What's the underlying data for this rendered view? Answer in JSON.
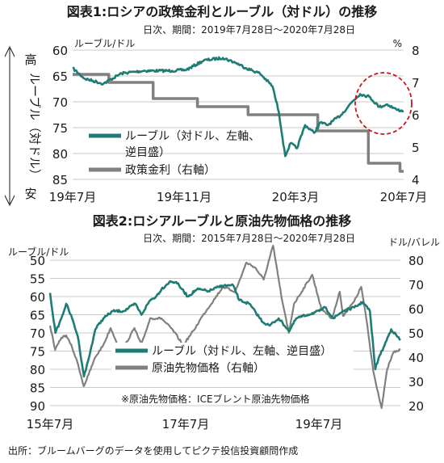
{
  "colors": {
    "ruble": "#1e7c74",
    "policy": "#808080",
    "oil": "#808080",
    "grid": "#c8c8c8",
    "circle": "#c8181e"
  },
  "figure1": {
    "title": "図表1:ロシアの政策金利とルーブル（対ドル）の推移",
    "subtitle": "日次、期間：2019年7月28日〜2020年7月28日",
    "left_unit": "ルーブル/ドル",
    "right_unit": "%",
    "side_top": "高",
    "side_mid": "ルーブル（対ドル）",
    "side_bottom": "安",
    "legend_ruble_1": "ルーブル（対ドル、左軸、",
    "legend_ruble_2": "逆目盛）",
    "legend_policy": "政策金利（右軸）",
    "x_ticks": [
      "19年7月",
      "19年11月",
      "20年3月",
      "20年7月"
    ],
    "y_left_ticks": [
      "60",
      "65",
      "70",
      "75",
      "80",
      "85"
    ],
    "y_right_ticks": [
      "8",
      "7",
      "6",
      "5",
      "4"
    ]
  },
  "figure2": {
    "title": "図表2:ロシアルーブルと原油先物価格の推移",
    "subtitle": "日次、期間：2015年7月28日〜2020年7月28日",
    "left_unit": "ルーブル/ドル",
    "right_unit": "ドル/バレル",
    "legend_ruble": "ルーブル（対ドル、左軸、逆目盛）",
    "legend_oil": "原油先物価格（右軸）",
    "note": "※原油先物価格：ICEブレント原油先物価格",
    "x_ticks": [
      "15年7月",
      "17年7月",
      "19年7月"
    ],
    "y_left_ticks": [
      "50",
      "55",
      "60",
      "65",
      "70",
      "75",
      "80",
      "85",
      "90"
    ],
    "y_right_ticks": [
      "80",
      "70",
      "60",
      "50",
      "40",
      "30",
      "20"
    ]
  },
  "source": "出所：ブルームバーグのデータを使用してピクテ投信投資顧問作成",
  "chart_data": [
    {
      "type": "line",
      "title": "図表1:ロシアの政策金利とルーブル（対ドル）の推移",
      "xlabel": "",
      "ylabel": "ルーブル/ドル",
      "y_inverted": true,
      "ylim": [
        60,
        85
      ],
      "y2lim": [
        4,
        8
      ],
      "x_range": [
        "2019-07-28",
        "2020-07-28"
      ],
      "grid": "horizontal",
      "legend_position": "bottom-left",
      "series": [
        {
          "name": "ルーブル（対ドル、左軸、逆目盛）",
          "axis": "left",
          "points": [
            [
              "2019-07-28",
              63.5
            ],
            [
              "2019-08-10",
              65.5
            ],
            [
              "2019-08-31",
              66.5
            ],
            [
              "2019-09-20",
              64.5
            ],
            [
              "2019-10-15",
              64.0
            ],
            [
              "2019-10-31",
              64.0
            ],
            [
              "2019-11-15",
              64.0
            ],
            [
              "2019-12-01",
              63.8
            ],
            [
              "2019-12-20",
              62.0
            ],
            [
              "2020-01-10",
              61.5
            ],
            [
              "2020-01-25",
              62.5
            ],
            [
              "2020-02-05",
              63.5
            ],
            [
              "2020-02-20",
              64.5
            ],
            [
              "2020-03-05",
              67.0
            ],
            [
              "2020-03-12",
              72.0
            ],
            [
              "2020-03-19",
              80.5
            ],
            [
              "2020-03-25",
              78.0
            ],
            [
              "2020-04-01",
              79.0
            ],
            [
              "2020-04-10",
              74.5
            ],
            [
              "2020-04-20",
              76.0
            ],
            [
              "2020-04-27",
              74.0
            ],
            [
              "2020-05-05",
              74.5
            ],
            [
              "2020-05-20",
              72.5
            ],
            [
              "2020-06-01",
              70.0
            ],
            [
              "2020-06-10",
              68.5
            ],
            [
              "2020-06-20",
              69.0
            ],
            [
              "2020-07-01",
              71.0
            ],
            [
              "2020-07-10",
              70.5
            ],
            [
              "2020-07-20",
              71.5
            ],
            [
              "2020-07-28",
              71.8
            ]
          ]
        },
        {
          "name": "政策金利（右軸）",
          "axis": "right",
          "points": [
            [
              "2019-07-28",
              7.25
            ],
            [
              "2019-09-06",
              7.0
            ],
            [
              "2019-10-25",
              6.5
            ],
            [
              "2019-12-13",
              6.25
            ],
            [
              "2020-02-07",
              6.0
            ],
            [
              "2020-04-24",
              5.5
            ],
            [
              "2020-06-19",
              4.5
            ],
            [
              "2020-07-24",
              4.25
            ],
            [
              "2020-07-28",
              4.25
            ]
          ]
        }
      ]
    },
    {
      "type": "line",
      "title": "図表2:ロシアルーブルと原油先物価格の推移",
      "xlabel": "",
      "ylabel": "ルーブル/ドル",
      "y_inverted": true,
      "ylim": [
        50,
        90
      ],
      "y2lim": [
        20,
        80
      ],
      "x_range": [
        "2015-07-28",
        "2020-07-28"
      ],
      "grid": "horizontal",
      "legend_position": "bottom-center",
      "series": [
        {
          "name": "ルーブル（対ドル、左軸、逆目盛）",
          "axis": "left",
          "points": [
            [
              "2015-07-28",
              59
            ],
            [
              "2015-08-25",
              70
            ],
            [
              "2015-09-25",
              66
            ],
            [
              "2015-10-20",
              62
            ],
            [
              "2015-11-20",
              66
            ],
            [
              "2015-12-20",
              71
            ],
            [
              "2016-01-21",
              82
            ],
            [
              "2016-02-15",
              77
            ],
            [
              "2016-03-20",
              69
            ],
            [
              "2016-05-01",
              66
            ],
            [
              "2016-06-20",
              64
            ],
            [
              "2016-08-15",
              64
            ],
            [
              "2016-10-15",
              62
            ],
            [
              "2016-11-15",
              65
            ],
            [
              "2016-12-31",
              61
            ],
            [
              "2017-01-31",
              60
            ],
            [
              "2017-02-28",
              58
            ],
            [
              "2017-04-10",
              56
            ],
            [
              "2017-05-15",
              56
            ],
            [
              "2017-06-15",
              58
            ],
            [
              "2017-07-15",
              60
            ],
            [
              "2017-09-01",
              58
            ],
            [
              "2017-11-01",
              58.5
            ],
            [
              "2018-01-10",
              57
            ],
            [
              "2018-03-10",
              57
            ],
            [
              "2018-04-10",
              61
            ],
            [
              "2018-06-01",
              62
            ],
            [
              "2018-08-10",
              67
            ],
            [
              "2018-09-15",
              68
            ],
            [
              "2018-11-01",
              66
            ],
            [
              "2018-12-27",
              69.5
            ],
            [
              "2019-02-01",
              66
            ],
            [
              "2019-04-01",
              65
            ],
            [
              "2019-06-01",
              64
            ],
            [
              "2019-07-01",
              63
            ],
            [
              "2019-08-15",
              66
            ],
            [
              "2019-10-01",
              64
            ],
            [
              "2019-12-01",
              63
            ],
            [
              "2020-01-15",
              61.5
            ],
            [
              "2020-02-20",
              64
            ],
            [
              "2020-03-19",
              80
            ],
            [
              "2020-04-05",
              77
            ],
            [
              "2020-05-01",
              74
            ],
            [
              "2020-06-10",
              69
            ],
            [
              "2020-07-28",
              72
            ]
          ]
        },
        {
          "name": "原油先物価格（右軸）",
          "axis": "right",
          "points": [
            [
              "2015-07-28",
              53
            ],
            [
              "2015-08-24",
              43
            ],
            [
              "2015-09-25",
              48
            ],
            [
              "2015-10-20",
              49
            ],
            [
              "2015-11-20",
              44
            ],
            [
              "2015-12-21",
              37
            ],
            [
              "2016-01-20",
              28
            ],
            [
              "2016-02-15",
              33
            ],
            [
              "2016-03-20",
              40
            ],
            [
              "2016-05-01",
              45
            ],
            [
              "2016-06-08",
              52
            ],
            [
              "2016-08-02",
              42
            ],
            [
              "2016-10-10",
              52
            ],
            [
              "2016-11-15",
              45
            ],
            [
              "2016-12-31",
              56
            ],
            [
              "2017-02-28",
              56
            ],
            [
              "2017-04-30",
              51
            ],
            [
              "2017-06-21",
              45
            ],
            [
              "2017-08-15",
              51
            ],
            [
              "2017-09-30",
              57
            ],
            [
              "2018-01-15",
              69
            ],
            [
              "2018-03-20",
              67
            ],
            [
              "2018-05-17",
              79
            ],
            [
              "2018-07-01",
              77
            ],
            [
              "2018-08-15",
              72
            ],
            [
              "2018-10-03",
              86
            ],
            [
              "2018-11-20",
              63
            ],
            [
              "2018-12-24",
              50
            ],
            [
              "2019-01-20",
              62
            ],
            [
              "2019-04-25",
              74
            ],
            [
              "2019-06-12",
              60
            ],
            [
              "2019-08-07",
              56
            ],
            [
              "2019-09-16",
              67
            ],
            [
              "2019-10-03",
              57
            ],
            [
              "2019-11-30",
              63
            ],
            [
              "2020-01-06",
              69
            ],
            [
              "2020-02-01",
              56
            ],
            [
              "2020-03-09",
              34
            ],
            [
              "2020-04-21",
              19
            ],
            [
              "2020-05-20",
              35
            ],
            [
              "2020-06-22",
              42
            ],
            [
              "2020-07-28",
              43
            ]
          ]
        }
      ]
    }
  ]
}
